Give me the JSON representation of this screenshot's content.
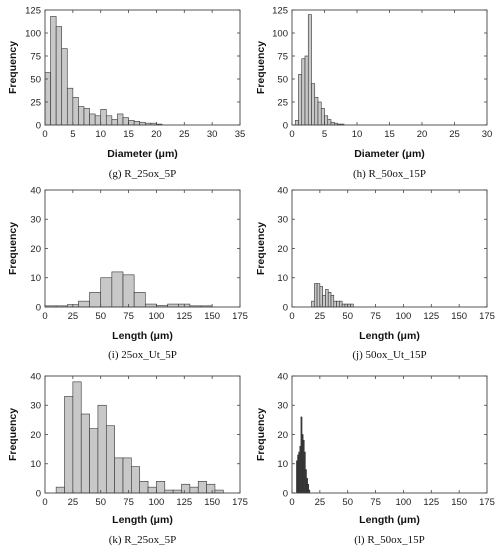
{
  "chart_data": [
    {
      "type": "bar",
      "caption": "(g) R_25ox_5P",
      "xlabel": "Diameter (μm)",
      "ylabel": "Frequency",
      "xlim": [
        0,
        35
      ],
      "ylim": [
        0,
        125
      ],
      "xticks": [
        0,
        5,
        10,
        15,
        20,
        25,
        30,
        35
      ],
      "yticks": [
        0,
        25,
        50,
        75,
        100,
        125
      ],
      "bin_width": 1,
      "bin_start": [
        0,
        1,
        2,
        3,
        4,
        5,
        6,
        7,
        8,
        9,
        10,
        11,
        12,
        13,
        14,
        15,
        16,
        17,
        18,
        19,
        20
      ],
      "values": [
        57,
        118,
        107,
        83,
        40,
        30,
        20,
        18,
        12,
        10,
        17,
        10,
        6,
        12,
        8,
        5,
        4,
        3,
        2,
        2,
        1
      ],
      "bar_fill": "#c8c8c8"
    },
    {
      "type": "bar",
      "caption": "(h) R_50ox_15P",
      "xlabel": "Diameter (μm)",
      "ylabel": "Frequency",
      "xlim": [
        0,
        30
      ],
      "ylim": [
        0,
        125
      ],
      "xticks": [
        0,
        5,
        10,
        15,
        20,
        25,
        30
      ],
      "yticks": [
        0,
        25,
        50,
        75,
        100,
        125
      ],
      "bin_width": 0.5,
      "bin_start": [
        0.5,
        1,
        1.5,
        2,
        2.5,
        3,
        3.5,
        4,
        4.5,
        5,
        5.5,
        6,
        6.5,
        7,
        7.5
      ],
      "values": [
        5,
        55,
        72,
        75,
        120,
        45,
        30,
        25,
        18,
        10,
        6,
        3,
        2,
        1,
        1
      ],
      "bar_fill": "#c8c8c8"
    },
    {
      "type": "bar",
      "caption": "(i) 25ox_Ut_5P",
      "xlabel": "Length (μm)",
      "ylabel": "Frequency",
      "xlim": [
        0,
        175
      ],
      "ylim": [
        0,
        40
      ],
      "xticks": [
        0,
        25,
        50,
        75,
        100,
        125,
        150,
        175
      ],
      "yticks": [
        0,
        10,
        20,
        30,
        40
      ],
      "bin_width": 10,
      "bin_start": [
        0,
        10,
        20,
        30,
        40,
        50,
        60,
        70,
        80,
        90,
        100,
        110,
        120,
        130,
        140
      ],
      "values": [
        0.4,
        0.4,
        0.8,
        2,
        5,
        10,
        12,
        11,
        5,
        1,
        0.5,
        1,
        1,
        0.4,
        0.4
      ],
      "bar_fill": "#c8c8c8"
    },
    {
      "type": "bar",
      "caption": "(j) 50ox_Ut_15P",
      "xlabel": "Length (μm)",
      "ylabel": "Frequency",
      "xlim": [
        0,
        175
      ],
      "ylim": [
        0,
        40
      ],
      "xticks": [
        0,
        25,
        50,
        75,
        100,
        125,
        150,
        175
      ],
      "yticks": [
        0,
        10,
        20,
        30,
        40
      ],
      "bin_width": 2.5,
      "bin_start": [
        17.5,
        20,
        22.5,
        25,
        27.5,
        30,
        32.5,
        35,
        37.5,
        40,
        42.5,
        45,
        47.5,
        50,
        52.5
      ],
      "values": [
        2,
        8,
        8,
        7,
        4,
        6,
        5,
        4,
        2,
        2,
        2,
        1,
        1,
        1,
        1
      ],
      "bar_fill": "#c8c8c8"
    },
    {
      "type": "bar",
      "caption": "(k) R_25ox_5P",
      "xlabel": "Length (μm)",
      "ylabel": "Frequency",
      "xlim": [
        0,
        175
      ],
      "ylim": [
        0,
        40
      ],
      "xticks": [
        0,
        25,
        50,
        75,
        100,
        125,
        150,
        175
      ],
      "yticks": [
        0,
        10,
        20,
        30,
        40
      ],
      "bin_width": 7.5,
      "bin_start": [
        10,
        17.5,
        25,
        32.5,
        40,
        47.5,
        55,
        62.5,
        70,
        77.5,
        85,
        92.5,
        100,
        107.5,
        115,
        122.5,
        130,
        137.5,
        145,
        152.5
      ],
      "values": [
        2,
        33,
        38,
        27,
        22,
        30,
        23,
        12,
        12,
        9,
        4,
        2,
        4,
        1,
        1,
        3,
        2,
        4,
        3,
        1
      ],
      "bar_fill": "#c8c8c8"
    },
    {
      "type": "bar",
      "caption": "(l) R_50ox_15P",
      "xlabel": "Length (μm)",
      "ylabel": "Frequency",
      "xlim": [
        0,
        175
      ],
      "ylim": [
        0,
        40
      ],
      "xticks": [
        0,
        25,
        50,
        75,
        100,
        125,
        150,
        175
      ],
      "yticks": [
        0,
        10,
        20,
        30,
        40
      ],
      "bin_width": 1,
      "bin_start": [
        4,
        5,
        6,
        7,
        8,
        9,
        10,
        11,
        12,
        13,
        14,
        15
      ],
      "values": [
        11,
        13,
        14,
        16,
        26,
        20,
        18,
        14,
        8,
        5,
        3,
        1
      ],
      "bar_fill": "#3a3a3a"
    }
  ]
}
